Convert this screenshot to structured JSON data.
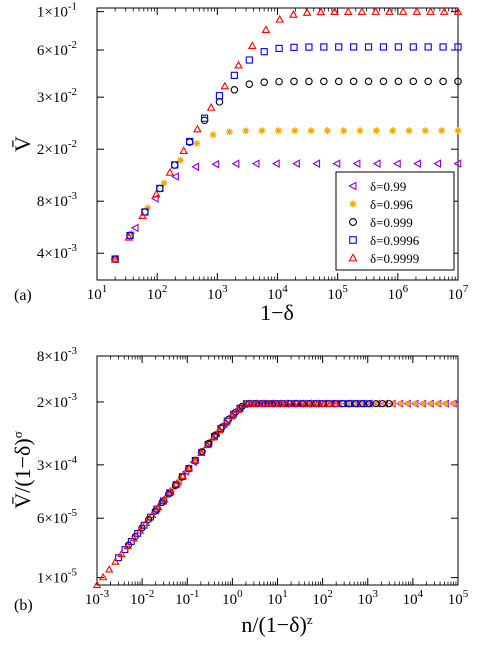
{
  "chart_data": [
    {
      "type": "scatter",
      "panel_label": "(a)",
      "xlabel": "1−δ",
      "ylabel": "V̄",
      "x_scale": "log",
      "y_scale": "log",
      "xlim": [
        10,
        10000000
      ],
      "ylim": [
        0.0028,
        0.105
      ],
      "x_ticks": [
        {
          "value": 10,
          "base": "10",
          "exp": "1"
        },
        {
          "value": 100,
          "base": "10",
          "exp": "2"
        },
        {
          "value": 1000,
          "base": "10",
          "exp": "3"
        },
        {
          "value": 10000,
          "base": "10",
          "exp": "4"
        },
        {
          "value": 100000,
          "base": "10",
          "exp": "5"
        },
        {
          "value": 1000000,
          "base": "10",
          "exp": "6"
        },
        {
          "value": 10000000,
          "base": "10",
          "exp": "7"
        }
      ],
      "y_ticks": [
        {
          "value": 0.004,
          "base": "4×10",
          "exp": "-3"
        },
        {
          "value": 0.008,
          "base": "8×10",
          "exp": "-3"
        },
        {
          "value": 0.016,
          "base": "2×10",
          "exp": "-2"
        },
        {
          "value": 0.032,
          "base": "3×10",
          "exp": "-2"
        },
        {
          "value": 0.06,
          "base": "6×10",
          "exp": "-2"
        },
        {
          "value": 0.1,
          "base": "1×10",
          "exp": "-1"
        }
      ],
      "legend_position": "lower-right",
      "series": [
        {
          "name": "δ=0.99",
          "marker": "triangle-left",
          "color": "#9400d3",
          "plateau": 0.0132,
          "n": 18
        },
        {
          "name": "δ=0.996",
          "marker": "star",
          "color": "#ffa500",
          "plateau": 0.0205,
          "n": 22
        },
        {
          "name": "δ=0.999",
          "marker": "circle",
          "color": "#000000",
          "plateau": 0.0395,
          "n": 24
        },
        {
          "name": "δ=0.9996",
          "marker": "square",
          "color": "#0000ff",
          "plateau": 0.0625,
          "n": 24
        },
        {
          "name": "δ=0.9999",
          "marker": "triangle-up",
          "color": "#ff0000",
          "plateau": 0.1,
          "n": 26
        }
      ],
      "curve": {
        "x0": 20,
        "y0": 0.0037,
        "slope": 0.55,
        "x_min": 20,
        "x_max": 10000000
      }
    },
    {
      "type": "scatter",
      "panel_label": "(b)",
      "xlabel": "n/(1−δ)",
      "xlabel_sup": "z",
      "ylabel": "V̄/(1−δ)",
      "ylabel_sup": "σ",
      "x_scale": "log",
      "y_scale": "log",
      "xlim": [
        0.001,
        100000
      ],
      "ylim": [
        8e-06,
        0.008
      ],
      "x_ticks": [
        {
          "value": 0.001,
          "base": "10",
          "exp": "-3"
        },
        {
          "value": 0.01,
          "base": "10",
          "exp": "-2"
        },
        {
          "value": 0.1,
          "base": "10",
          "exp": "-1"
        },
        {
          "value": 1,
          "base": "10",
          "exp": "0"
        },
        {
          "value": 10,
          "base": "10",
          "exp": "1"
        },
        {
          "value": 100,
          "base": "10",
          "exp": "2"
        },
        {
          "value": 1000,
          "base": "10",
          "exp": "3"
        },
        {
          "value": 10000,
          "base": "10",
          "exp": "4"
        },
        {
          "value": 100000,
          "base": "10",
          "exp": "5"
        }
      ],
      "y_ticks": [
        {
          "value": 1e-05,
          "base": "1×10",
          "exp": "-5"
        },
        {
          "value": 6e-05,
          "base": "6×10",
          "exp": "-5"
        },
        {
          "value": 0.0003,
          "base": "3×10",
          "exp": "-4"
        },
        {
          "value": 0.002,
          "base": "2×10",
          "exp": "-3"
        },
        {
          "value": 0.008,
          "base": "8×10",
          "exp": "-3"
        }
      ],
      "collapse": {
        "slope": 0.75,
        "knee_x": 2,
        "plateau": 0.0019
      },
      "series_ranges": [
        {
          "marker": "triangle-left",
          "color": "#9400d3",
          "x_min": 0.02,
          "x_max": 80000,
          "n": 40
        },
        {
          "marker": "star",
          "color": "#ffa500",
          "x_min": 0.01,
          "x_max": 80000,
          "n": 42
        },
        {
          "marker": "circle",
          "color": "#000000",
          "x_min": 0.005,
          "x_max": 3000,
          "n": 40
        },
        {
          "marker": "square",
          "color": "#0000ff",
          "x_min": 0.003,
          "x_max": 1000,
          "n": 40
        },
        {
          "marker": "triangle-up",
          "color": "#ff0000",
          "x_min": 0.001,
          "x_max": 200,
          "n": 40
        }
      ]
    }
  ]
}
